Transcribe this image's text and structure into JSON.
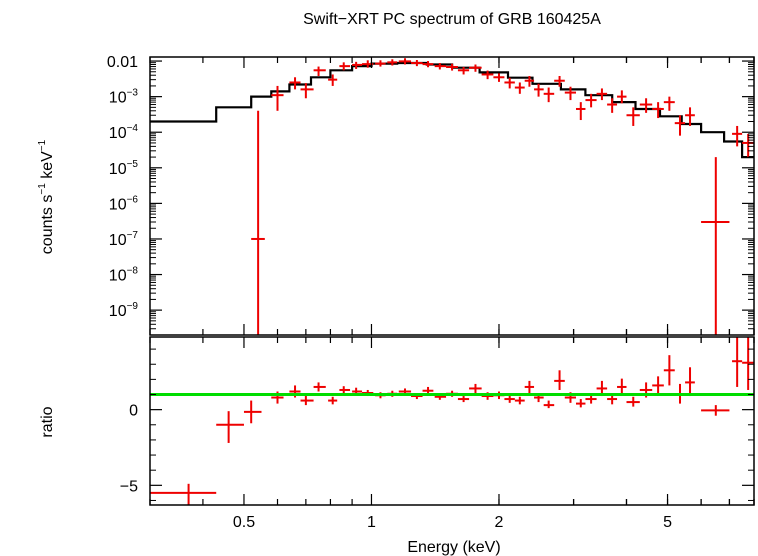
{
  "chart_data": {
    "type": "line",
    "title": "Swift−XRT PC spectrum of GRB 160425A",
    "xlabel": "Energy (keV)",
    "x_scale": "log",
    "xlim": [
      0.3,
      8.0
    ],
    "x_ticks": [
      {
        "value": 0.5,
        "label": "0.5"
      },
      {
        "value": 1,
        "label": "1"
      },
      {
        "value": 2,
        "label": "2"
      },
      {
        "value": 5,
        "label": "5"
      }
    ],
    "colors": {
      "data": "#ee0000",
      "model": "#000000",
      "unity": "#00dd00",
      "axes": "#000000"
    },
    "top_panel": {
      "ylabel_parts": [
        "counts s",
        "−1",
        " keV",
        "−1"
      ],
      "y_scale": "log",
      "ylim": [
        2e-10,
        0.013
      ],
      "y_ticks": [
        {
          "value": 0.01,
          "base": "0.01",
          "exp": ""
        },
        {
          "value": 0.001,
          "base": "10",
          "exp": "−3"
        },
        {
          "value": 0.0001,
          "base": "10",
          "exp": "−4"
        },
        {
          "value": 1e-05,
          "base": "10",
          "exp": "−5"
        },
        {
          "value": 1e-06,
          "base": "10",
          "exp": "−6"
        },
        {
          "value": 1e-07,
          "base": "10",
          "exp": "−7"
        },
        {
          "value": 1e-08,
          "base": "10",
          "exp": "−8"
        },
        {
          "value": 1e-09,
          "base": "10",
          "exp": "−9"
        }
      ],
      "model_name": "model",
      "model_steps": [
        [
          0.3,
          0.43,
          0.0002
        ],
        [
          0.43,
          0.52,
          0.0005
        ],
        [
          0.52,
          0.58,
          0.001
        ],
        [
          0.58,
          0.64,
          0.0014
        ],
        [
          0.64,
          0.72,
          0.0022
        ],
        [
          0.72,
          0.8,
          0.0035
        ],
        [
          0.8,
          0.9,
          0.0055
        ],
        [
          0.9,
          1.0,
          0.0072
        ],
        [
          1.0,
          1.15,
          0.0085
        ],
        [
          1.15,
          1.35,
          0.0088
        ],
        [
          1.35,
          1.55,
          0.008
        ],
        [
          1.55,
          1.8,
          0.0065
        ],
        [
          1.8,
          2.1,
          0.0048
        ],
        [
          2.1,
          2.4,
          0.0034
        ],
        [
          2.4,
          2.8,
          0.0023
        ],
        [
          2.8,
          3.2,
          0.0016
        ],
        [
          3.2,
          3.7,
          0.0011
        ],
        [
          3.7,
          4.2,
          0.0007
        ],
        [
          4.2,
          4.8,
          0.00045
        ],
        [
          4.8,
          5.4,
          0.00028
        ],
        [
          5.4,
          6.0,
          0.00017
        ],
        [
          6.0,
          6.8,
          0.0001
        ],
        [
          6.8,
          7.5,
          5.5e-05
        ],
        [
          7.5,
          8.0,
          2e-05
        ]
      ],
      "data_points": [
        {
          "x": 0.54,
          "xlo": 0.52,
          "xhi": 0.56,
          "y": 1e-07,
          "ylo": 1e-11,
          "yhi": 0.0004
        },
        {
          "x": 0.6,
          "xlo": 0.58,
          "xhi": 0.62,
          "y": 0.0011,
          "ylo": 0.0004,
          "yhi": 0.002
        },
        {
          "x": 0.66,
          "xlo": 0.64,
          "xhi": 0.68,
          "y": 0.0025,
          "ylo": 0.0016,
          "yhi": 0.0035
        },
        {
          "x": 0.7,
          "xlo": 0.68,
          "xhi": 0.73,
          "y": 0.0016,
          "ylo": 0.0009,
          "yhi": 0.0024
        },
        {
          "x": 0.75,
          "xlo": 0.73,
          "xhi": 0.78,
          "y": 0.0055,
          "ylo": 0.0038,
          "yhi": 0.007
        },
        {
          "x": 0.81,
          "xlo": 0.79,
          "xhi": 0.83,
          "y": 0.003,
          "ylo": 0.002,
          "yhi": 0.0042
        },
        {
          "x": 0.86,
          "xlo": 0.84,
          "xhi": 0.89,
          "y": 0.0072,
          "ylo": 0.0055,
          "yhi": 0.0092
        },
        {
          "x": 0.92,
          "xlo": 0.9,
          "xhi": 0.95,
          "y": 0.0078,
          "ylo": 0.006,
          "yhi": 0.0095
        },
        {
          "x": 0.98,
          "xlo": 0.95,
          "xhi": 1.01,
          "y": 0.0082,
          "ylo": 0.0065,
          "yhi": 0.0105
        },
        {
          "x": 1.05,
          "xlo": 1.02,
          "xhi": 1.08,
          "y": 0.0085,
          "ylo": 0.007,
          "yhi": 0.0105
        },
        {
          "x": 1.12,
          "xlo": 1.09,
          "xhi": 1.15,
          "y": 0.0092,
          "ylo": 0.0075,
          "yhi": 0.0112
        },
        {
          "x": 1.2,
          "xlo": 1.16,
          "xhi": 1.24,
          "y": 0.0098,
          "ylo": 0.008,
          "yhi": 0.012
        },
        {
          "x": 1.28,
          "xlo": 1.24,
          "xhi": 1.32,
          "y": 0.0088,
          "ylo": 0.0072,
          "yhi": 0.0107
        },
        {
          "x": 1.36,
          "xlo": 1.32,
          "xhi": 1.4,
          "y": 0.0082,
          "ylo": 0.0067,
          "yhi": 0.01
        },
        {
          "x": 1.45,
          "xlo": 1.41,
          "xhi": 1.5,
          "y": 0.0072,
          "ylo": 0.0058,
          "yhi": 0.0088
        },
        {
          "x": 1.55,
          "xlo": 1.5,
          "xhi": 1.6,
          "y": 0.0068,
          "ylo": 0.0054,
          "yhi": 0.0084
        },
        {
          "x": 1.65,
          "xlo": 1.6,
          "xhi": 1.7,
          "y": 0.0055,
          "ylo": 0.0042,
          "yhi": 0.0068
        },
        {
          "x": 1.76,
          "xlo": 1.7,
          "xhi": 1.82,
          "y": 0.0065,
          "ylo": 0.005,
          "yhi": 0.008
        },
        {
          "x": 1.88,
          "xlo": 1.82,
          "xhi": 1.94,
          "y": 0.0042,
          "ylo": 0.0031,
          "yhi": 0.0054
        },
        {
          "x": 2.0,
          "xlo": 1.94,
          "xhi": 2.06,
          "y": 0.0035,
          "ylo": 0.0026,
          "yhi": 0.0045
        },
        {
          "x": 2.12,
          "xlo": 2.06,
          "xhi": 2.18,
          "y": 0.0025,
          "ylo": 0.0017,
          "yhi": 0.0034
        },
        {
          "x": 2.24,
          "xlo": 2.18,
          "xhi": 2.3,
          "y": 0.0018,
          "ylo": 0.0012,
          "yhi": 0.0025
        },
        {
          "x": 2.36,
          "xlo": 2.3,
          "xhi": 2.42,
          "y": 0.0028,
          "ylo": 0.0019,
          "yhi": 0.0038
        },
        {
          "x": 2.48,
          "xlo": 2.42,
          "xhi": 2.55,
          "y": 0.0016,
          "ylo": 0.001,
          "yhi": 0.0023
        },
        {
          "x": 2.62,
          "xlo": 2.55,
          "xhi": 2.7,
          "y": 0.0012,
          "ylo": 0.0007,
          "yhi": 0.0018
        },
        {
          "x": 2.78,
          "xlo": 2.7,
          "xhi": 2.86,
          "y": 0.0028,
          "ylo": 0.0019,
          "yhi": 0.0038
        },
        {
          "x": 2.95,
          "xlo": 2.86,
          "xhi": 3.04,
          "y": 0.0013,
          "ylo": 0.0008,
          "yhi": 0.0019
        },
        {
          "x": 3.12,
          "xlo": 3.04,
          "xhi": 3.2,
          "y": 0.00045,
          "ylo": 0.00022,
          "yhi": 0.0007
        },
        {
          "x": 3.3,
          "xlo": 3.2,
          "xhi": 3.4,
          "y": 0.0008,
          "ylo": 0.0005,
          "yhi": 0.0012
        },
        {
          "x": 3.5,
          "xlo": 3.4,
          "xhi": 3.6,
          "y": 0.0012,
          "ylo": 0.0008,
          "yhi": 0.0017
        },
        {
          "x": 3.7,
          "xlo": 3.6,
          "xhi": 3.8,
          "y": 0.0006,
          "ylo": 0.00035,
          "yhi": 0.0009
        },
        {
          "x": 3.9,
          "xlo": 3.8,
          "xhi": 4.0,
          "y": 0.001,
          "ylo": 0.00065,
          "yhi": 0.0015
        },
        {
          "x": 4.15,
          "xlo": 4.0,
          "xhi": 4.3,
          "y": 0.0003,
          "ylo": 0.00015,
          "yhi": 0.0005
        },
        {
          "x": 4.45,
          "xlo": 4.3,
          "xhi": 4.6,
          "y": 0.0006,
          "ylo": 0.00035,
          "yhi": 0.0009
        },
        {
          "x": 4.75,
          "xlo": 4.6,
          "xhi": 4.9,
          "y": 0.00045,
          "ylo": 0.00025,
          "yhi": 0.0007
        },
        {
          "x": 5.05,
          "xlo": 4.9,
          "xhi": 5.2,
          "y": 0.0007,
          "ylo": 0.0004,
          "yhi": 0.001
        },
        {
          "x": 5.35,
          "xlo": 5.2,
          "xhi": 5.5,
          "y": 0.00018,
          "ylo": 8e-05,
          "yhi": 0.0003
        },
        {
          "x": 5.65,
          "xlo": 5.5,
          "xhi": 5.8,
          "y": 0.0003,
          "ylo": 0.00015,
          "yhi": 0.0005
        },
        {
          "x": 6.5,
          "xlo": 6.0,
          "xhi": 7.0,
          "y": 3e-07,
          "ylo": 1e-11,
          "yhi": 2e-05
        },
        {
          "x": 7.3,
          "xlo": 7.1,
          "xhi": 7.5,
          "y": 9e-05,
          "ylo": 4e-05,
          "yhi": 0.00015
        },
        {
          "x": 7.75,
          "xlo": 7.5,
          "xhi": 8.0,
          "y": 5e-05,
          "ylo": 2e-05,
          "yhi": 9e-05
        }
      ]
    },
    "bottom_panel": {
      "ylabel": "ratio",
      "y_scale": "linear",
      "ylim": [
        -6.3,
        4.8
      ],
      "y_ticks": [
        {
          "value": 0,
          "label": "0"
        },
        {
          "value": -5,
          "label": "−5"
        }
      ],
      "unity_line": 1,
      "data_points": [
        {
          "x": 0.37,
          "xlo": 0.3,
          "xhi": 0.43,
          "y": -5.5,
          "ylo": -6.3,
          "yhi": -4.9
        },
        {
          "x": 0.46,
          "xlo": 0.43,
          "xhi": 0.5,
          "y": -1.0,
          "ylo": -2.2,
          "yhi": -0.1
        },
        {
          "x": 0.52,
          "xlo": 0.5,
          "xhi": 0.55,
          "y": -0.15,
          "ylo": -0.9,
          "yhi": 0.6
        },
        {
          "x": 0.6,
          "xlo": 0.58,
          "xhi": 0.62,
          "y": 0.8,
          "ylo": 0.4,
          "yhi": 1.2
        },
        {
          "x": 0.66,
          "xlo": 0.64,
          "xhi": 0.68,
          "y": 1.2,
          "ylo": 0.8,
          "yhi": 1.6
        },
        {
          "x": 0.7,
          "xlo": 0.68,
          "xhi": 0.73,
          "y": 0.6,
          "ylo": 0.3,
          "yhi": 0.95
        },
        {
          "x": 0.75,
          "xlo": 0.73,
          "xhi": 0.78,
          "y": 1.5,
          "ylo": 1.2,
          "yhi": 1.8
        },
        {
          "x": 0.81,
          "xlo": 0.79,
          "xhi": 0.83,
          "y": 0.6,
          "ylo": 0.35,
          "yhi": 0.85
        },
        {
          "x": 0.86,
          "xlo": 0.84,
          "xhi": 0.89,
          "y": 1.3,
          "ylo": 1.05,
          "yhi": 1.55
        },
        {
          "x": 0.92,
          "xlo": 0.9,
          "xhi": 0.95,
          "y": 1.2,
          "ylo": 0.95,
          "yhi": 1.45
        },
        {
          "x": 0.98,
          "xlo": 0.95,
          "xhi": 1.01,
          "y": 1.1,
          "ylo": 0.9,
          "yhi": 1.3
        },
        {
          "x": 1.05,
          "xlo": 1.02,
          "xhi": 1.08,
          "y": 0.95,
          "ylo": 0.75,
          "yhi": 1.15
        },
        {
          "x": 1.12,
          "xlo": 1.09,
          "xhi": 1.15,
          "y": 1.05,
          "ylo": 0.85,
          "yhi": 1.25
        },
        {
          "x": 1.2,
          "xlo": 1.16,
          "xhi": 1.24,
          "y": 1.2,
          "ylo": 1.0,
          "yhi": 1.4
        },
        {
          "x": 1.28,
          "xlo": 1.24,
          "xhi": 1.32,
          "y": 0.9,
          "ylo": 0.7,
          "yhi": 1.1
        },
        {
          "x": 1.36,
          "xlo": 1.32,
          "xhi": 1.4,
          "y": 1.25,
          "ylo": 1.0,
          "yhi": 1.5
        },
        {
          "x": 1.45,
          "xlo": 1.41,
          "xhi": 1.5,
          "y": 0.85,
          "ylo": 0.65,
          "yhi": 1.05
        },
        {
          "x": 1.55,
          "xlo": 1.5,
          "xhi": 1.6,
          "y": 1.05,
          "ylo": 0.85,
          "yhi": 1.25
        },
        {
          "x": 1.65,
          "xlo": 1.6,
          "xhi": 1.7,
          "y": 0.7,
          "ylo": 0.5,
          "yhi": 0.9
        },
        {
          "x": 1.76,
          "xlo": 1.7,
          "xhi": 1.82,
          "y": 1.4,
          "ylo": 1.1,
          "yhi": 1.7
        },
        {
          "x": 1.88,
          "xlo": 1.82,
          "xhi": 1.94,
          "y": 0.9,
          "ylo": 0.65,
          "yhi": 1.15
        },
        {
          "x": 2.0,
          "xlo": 1.94,
          "xhi": 2.06,
          "y": 0.95,
          "ylo": 0.7,
          "yhi": 1.2
        },
        {
          "x": 2.12,
          "xlo": 2.06,
          "xhi": 2.18,
          "y": 0.7,
          "ylo": 0.45,
          "yhi": 0.95
        },
        {
          "x": 2.24,
          "xlo": 2.18,
          "xhi": 2.3,
          "y": 0.6,
          "ylo": 0.35,
          "yhi": 0.85
        },
        {
          "x": 2.36,
          "xlo": 2.3,
          "xhi": 2.42,
          "y": 1.5,
          "ylo": 1.1,
          "yhi": 1.9
        },
        {
          "x": 2.48,
          "xlo": 2.42,
          "xhi": 2.55,
          "y": 0.8,
          "ylo": 0.5,
          "yhi": 1.1
        },
        {
          "x": 2.62,
          "xlo": 2.55,
          "xhi": 2.7,
          "y": 0.3,
          "ylo": 0.1,
          "yhi": 0.6
        },
        {
          "x": 2.78,
          "xlo": 2.7,
          "xhi": 2.86,
          "y": 1.9,
          "ylo": 1.3,
          "yhi": 2.6
        },
        {
          "x": 2.95,
          "xlo": 2.86,
          "xhi": 3.04,
          "y": 0.8,
          "ylo": 0.45,
          "yhi": 1.15
        },
        {
          "x": 3.12,
          "xlo": 3.04,
          "xhi": 3.2,
          "y": 0.4,
          "ylo": 0.15,
          "yhi": 0.7
        },
        {
          "x": 3.3,
          "xlo": 3.2,
          "xhi": 3.4,
          "y": 0.7,
          "ylo": 0.4,
          "yhi": 1.0
        },
        {
          "x": 3.5,
          "xlo": 3.4,
          "xhi": 3.6,
          "y": 1.4,
          "ylo": 0.9,
          "yhi": 1.9
        },
        {
          "x": 3.7,
          "xlo": 3.6,
          "xhi": 3.8,
          "y": 0.7,
          "ylo": 0.35,
          "yhi": 1.05
        },
        {
          "x": 3.9,
          "xlo": 3.8,
          "xhi": 4.0,
          "y": 1.5,
          "ylo": 0.95,
          "yhi": 2.05
        },
        {
          "x": 4.15,
          "xlo": 4.0,
          "xhi": 4.3,
          "y": 0.5,
          "ylo": 0.2,
          "yhi": 0.85
        },
        {
          "x": 4.45,
          "xlo": 4.3,
          "xhi": 4.6,
          "y": 1.3,
          "ylo": 0.8,
          "yhi": 1.8
        },
        {
          "x": 4.75,
          "xlo": 4.6,
          "xhi": 4.9,
          "y": 1.6,
          "ylo": 1.0,
          "yhi": 2.2
        },
        {
          "x": 5.05,
          "xlo": 4.9,
          "xhi": 5.2,
          "y": 2.6,
          "ylo": 1.6,
          "yhi": 3.6
        },
        {
          "x": 5.35,
          "xlo": 5.2,
          "xhi": 5.5,
          "y": 1.0,
          "ylo": 0.4,
          "yhi": 1.7
        },
        {
          "x": 5.65,
          "xlo": 5.5,
          "xhi": 5.8,
          "y": 1.8,
          "ylo": 0.9,
          "yhi": 2.8
        },
        {
          "x": 6.5,
          "xlo": 6.0,
          "xhi": 7.0,
          "y": -0.05,
          "ylo": -0.4,
          "yhi": 0.3
        },
        {
          "x": 7.3,
          "xlo": 7.1,
          "xhi": 7.5,
          "y": 3.2,
          "ylo": 1.5,
          "yhi": 4.8
        },
        {
          "x": 7.75,
          "xlo": 7.5,
          "xhi": 8.0,
          "y": 3.1,
          "ylo": 1.3,
          "yhi": 4.8
        }
      ]
    }
  }
}
